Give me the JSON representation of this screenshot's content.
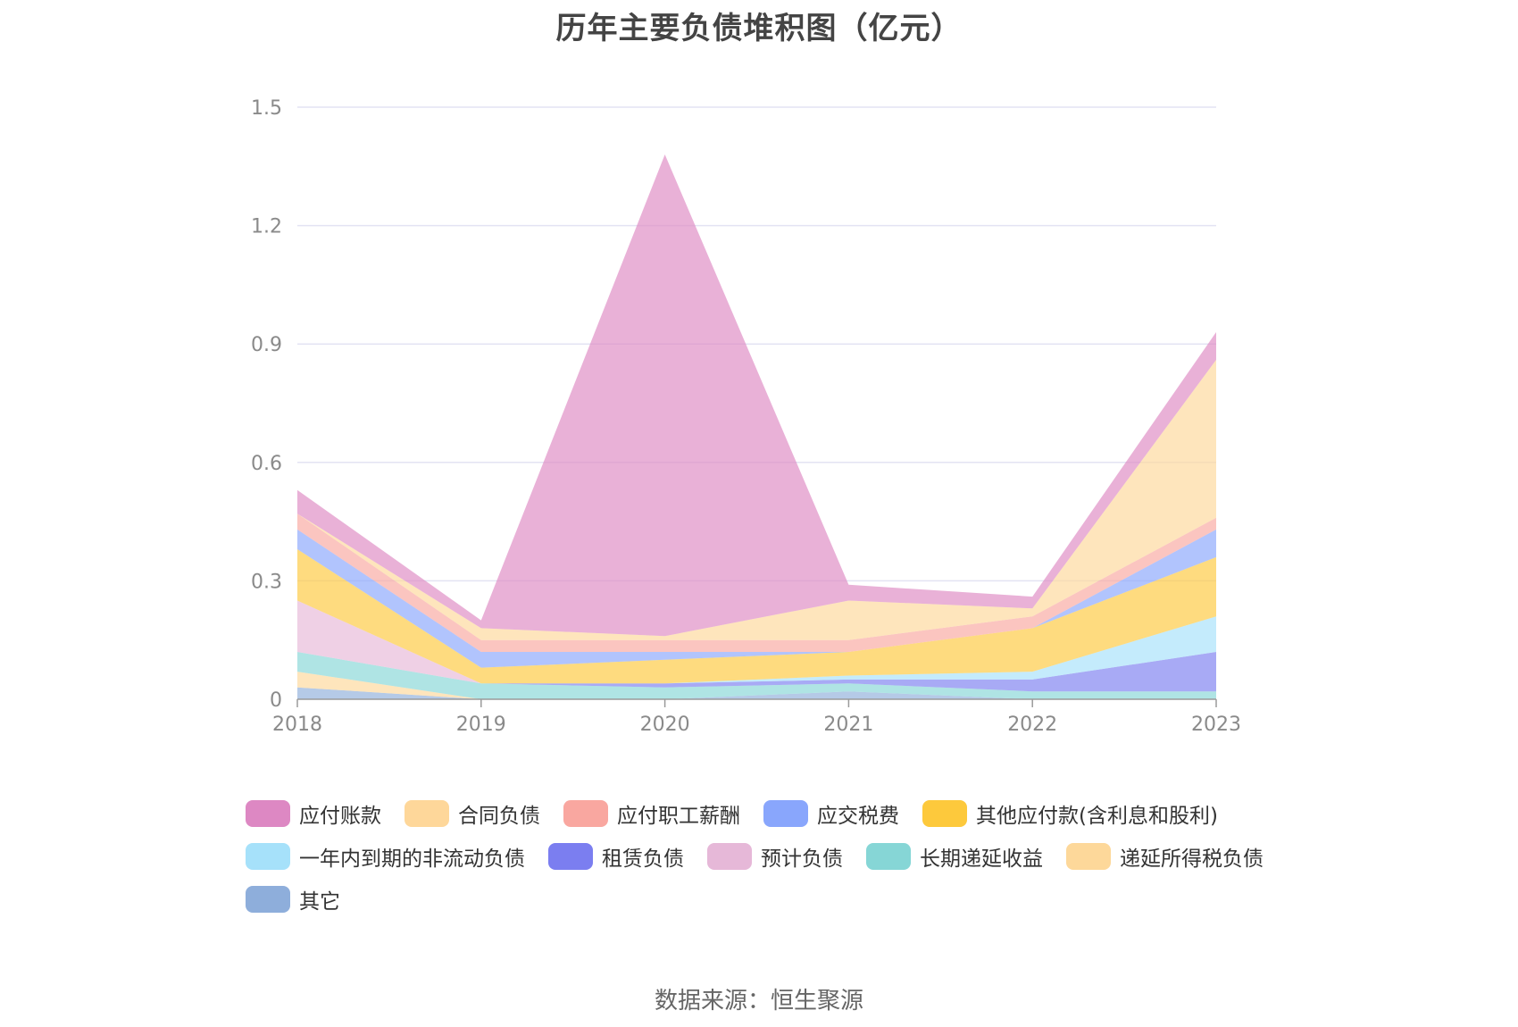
{
  "title": "历年主要负债堆积图（亿元）",
  "source": "数据来源：恒生聚源",
  "colors": {
    "grid": "#e3e3f3",
    "axis": "#9a9a9a"
  },
  "chart_data": {
    "type": "area",
    "stacked": true,
    "title": "历年主要负债堆积图（亿元）",
    "x": [
      "2018",
      "2019",
      "2020",
      "2021",
      "2022",
      "2023"
    ],
    "ylim": [
      0,
      1.5
    ],
    "yticks": [
      0,
      0.3,
      0.6,
      0.9,
      1.2,
      1.5
    ],
    "ytick_labels": [
      "0",
      "0.3",
      "0.6",
      "0.9",
      "1.2",
      "1.5"
    ],
    "grid": true,
    "legend_position": "bottom",
    "series": [
      {
        "name": "其它",
        "color": "#8eaedb",
        "values": [
          0.03,
          0.0,
          0.0,
          0.02,
          0.0,
          0.0
        ]
      },
      {
        "name": "递延所得税负债",
        "color": "#fdd89a",
        "values": [
          0.04,
          0.0,
          0.0,
          0.0,
          0.0,
          0.0
        ]
      },
      {
        "name": "长期递延收益",
        "color": "#86d6d6",
        "values": [
          0.05,
          0.04,
          0.03,
          0.02,
          0.02,
          0.02
        ]
      },
      {
        "name": "预计负债",
        "color": "#e6b8d8",
        "values": [
          0.13,
          0.0,
          0.0,
          0.0,
          0.0,
          0.0
        ]
      },
      {
        "name": "租赁负债",
        "color": "#7b7ef0",
        "values": [
          0.0,
          0.0,
          0.01,
          0.01,
          0.03,
          0.1
        ]
      },
      {
        "name": "一年内到期的非流动负债",
        "color": "#a6e1fa",
        "values": [
          0.0,
          0.0,
          0.0,
          0.01,
          0.02,
          0.09
        ]
      },
      {
        "name": "其他应付款(含利息和股利)",
        "color": "#fdc93c",
        "values": [
          0.13,
          0.04,
          0.06,
          0.06,
          0.11,
          0.15
        ]
      },
      {
        "name": "应交税费",
        "color": "#89a6fc",
        "values": [
          0.05,
          0.04,
          0.02,
          0.0,
          0.0,
          0.07
        ]
      },
      {
        "name": "应付职工薪酬",
        "color": "#f9a7a0",
        "values": [
          0.04,
          0.03,
          0.03,
          0.03,
          0.03,
          0.03
        ]
      },
      {
        "name": "合同负债",
        "color": "#fed79a",
        "values": [
          0.0,
          0.03,
          0.01,
          0.1,
          0.02,
          0.4
        ]
      },
      {
        "name": "应付账款",
        "color": "#dd88c3",
        "values": [
          0.06,
          0.02,
          1.22,
          0.04,
          0.03,
          0.07
        ]
      }
    ],
    "legend_order": [
      "应付账款",
      "合同负债",
      "应付职工薪酬",
      "应交税费",
      "其他应付款(含利息和股利)",
      "一年内到期的非流动负债",
      "租赁负债",
      "预计负债",
      "长期递延收益",
      "递延所得税负债",
      "其它"
    ]
  }
}
